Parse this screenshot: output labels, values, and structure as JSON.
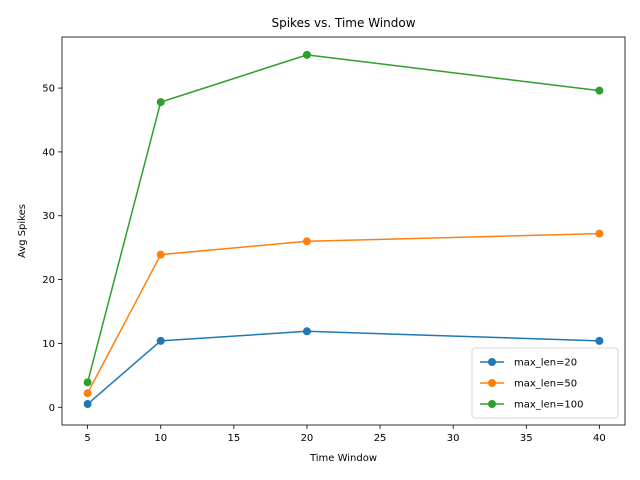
{
  "chart_data": {
    "type": "line",
    "title": "Spikes vs. Time Window",
    "xlabel": "Time Window",
    "ylabel": "Avg Spikes",
    "x": [
      5,
      10,
      20,
      40
    ],
    "xlim": [
      3.25,
      41.75
    ],
    "ylim": [
      -2.78,
      58.0
    ],
    "xticks": [
      5,
      10,
      15,
      20,
      25,
      30,
      35,
      40
    ],
    "yticks": [
      0,
      10,
      20,
      30,
      40,
      50
    ],
    "grid": false,
    "legend_position": "lower right",
    "series": [
      {
        "name": "max_len=20",
        "color": "#1f77b4",
        "values": [
          0.5,
          10.4,
          11.9,
          10.4
        ]
      },
      {
        "name": "max_len=50",
        "color": "#ff7f0e",
        "values": [
          2.2,
          23.9,
          26.0,
          27.2
        ]
      },
      {
        "name": "max_len=100",
        "color": "#2ca02c",
        "values": [
          3.9,
          47.8,
          55.2,
          49.6
        ]
      }
    ]
  }
}
